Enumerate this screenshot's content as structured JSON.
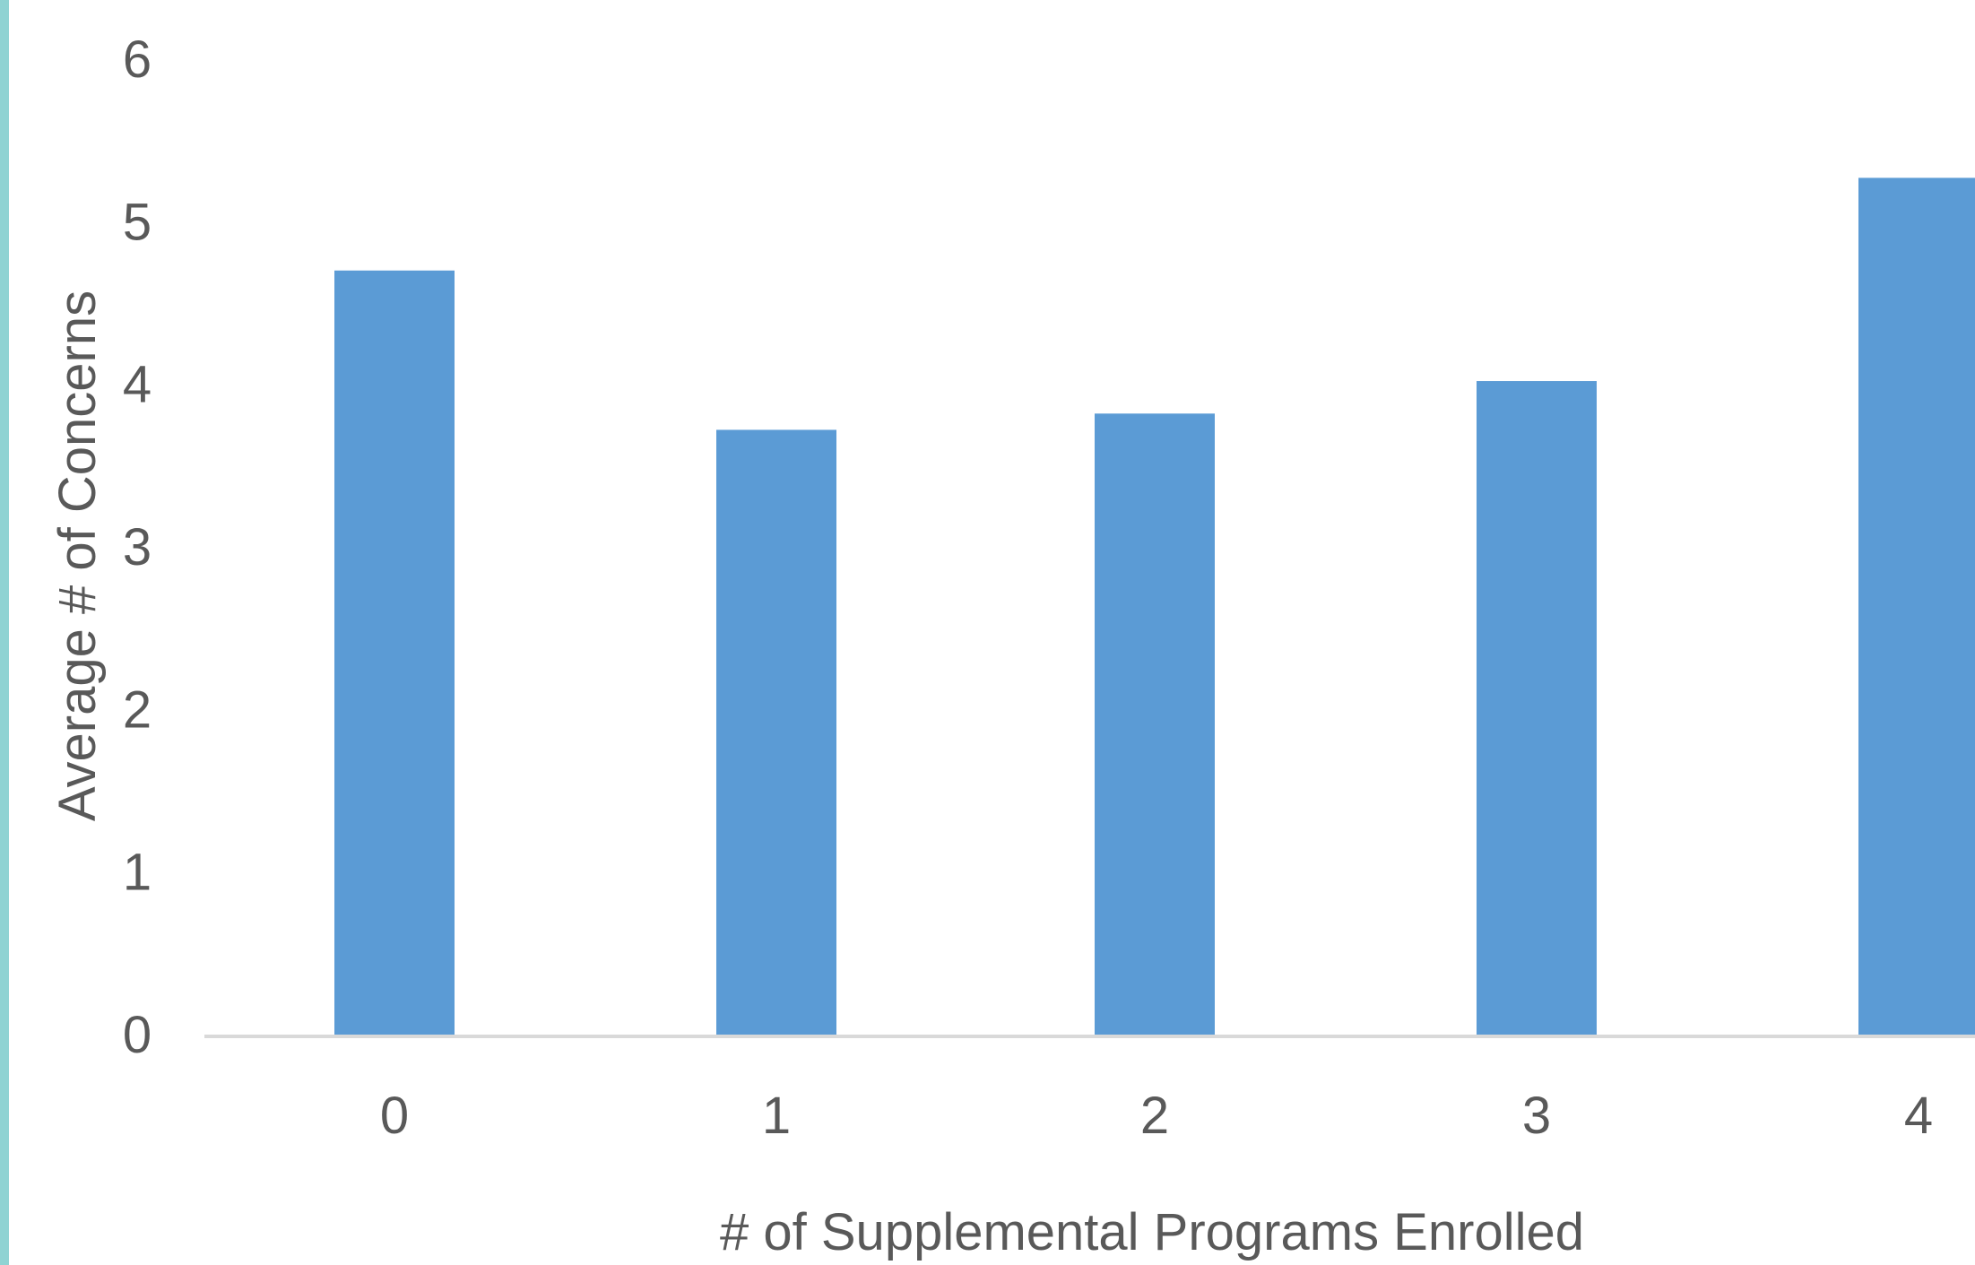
{
  "chart_data": {
    "type": "bar",
    "categories": [
      "0",
      "1",
      "2",
      "3",
      "4"
    ],
    "values": [
      4.7,
      3.72,
      3.82,
      4.02,
      5.27
    ],
    "title": "",
    "xlabel": "# of Supplemental Programs Enrolled",
    "ylabel": "Average # of Concerns",
    "ylim": [
      0,
      6
    ],
    "yticks": [
      "0",
      "1",
      "2",
      "3",
      "4",
      "5",
      "6"
    ],
    "grid": false,
    "colors": {
      "bar": "#5b9bd5",
      "axis_line": "#d9d9d9",
      "text": "#595959",
      "left_border": "#8fd3d3"
    }
  }
}
